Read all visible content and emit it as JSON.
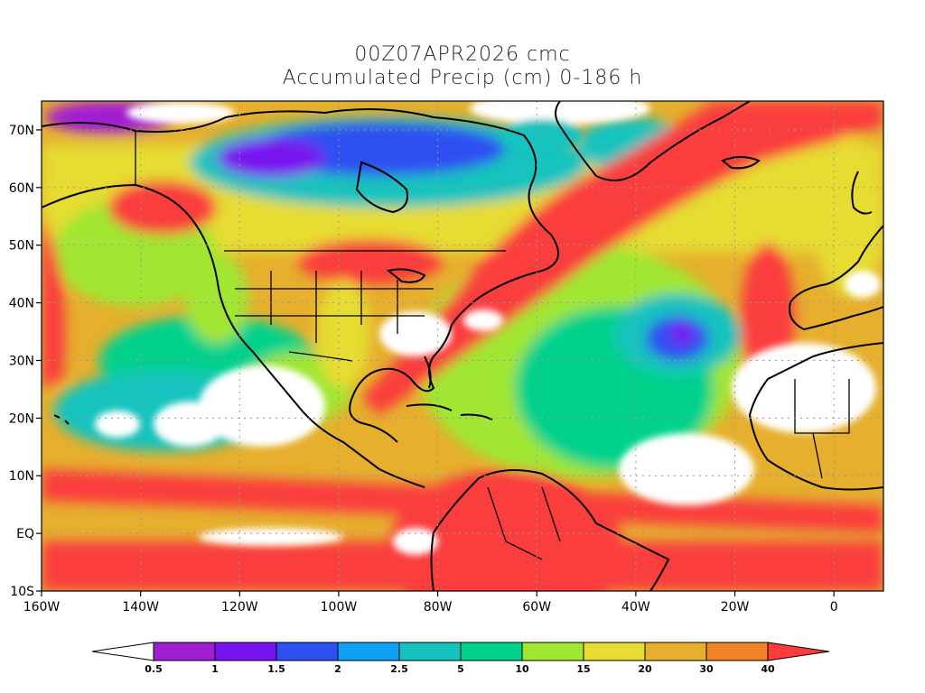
{
  "title": {
    "line1": "00Z07APR2026 cmc",
    "line2": "Accumulated Precip (cm) 0-186 h"
  },
  "map": {
    "lon_range": [
      -160,
      10
    ],
    "lat_range": [
      -10,
      75
    ],
    "x_ticks": [
      "160W",
      "140W",
      "120W",
      "100W",
      "80W",
      "60W",
      "40W",
      "20W",
      "0"
    ],
    "x_tick_values": [
      -160,
      -140,
      -120,
      -100,
      -80,
      -60,
      -40,
      -20,
      0
    ],
    "y_ticks": [
      "10S",
      "EQ",
      "10N",
      "20N",
      "30N",
      "40N",
      "50N",
      "60N",
      "70N"
    ],
    "y_tick_values": [
      -10,
      0,
      10,
      20,
      30,
      40,
      50,
      60,
      70
    ],
    "gridlines": true
  },
  "colorbar": {
    "labels": [
      "0.5",
      "1",
      "1.5",
      "2",
      "2.5",
      "5",
      "10",
      "15",
      "20",
      "30",
      "40"
    ],
    "colors": [
      "#ffffff",
      "#a01ed2",
      "#7814f0",
      "#2d50f0",
      "#0fa0f5",
      "#14c3be",
      "#00d28c",
      "#a0e632",
      "#e6dc32",
      "#e6af2d",
      "#f08228",
      "#fa3c3c"
    ]
  },
  "palette": {
    "land_outline": "#000000",
    "dry": "#ffffff",
    "heavy": "#f54040"
  }
}
